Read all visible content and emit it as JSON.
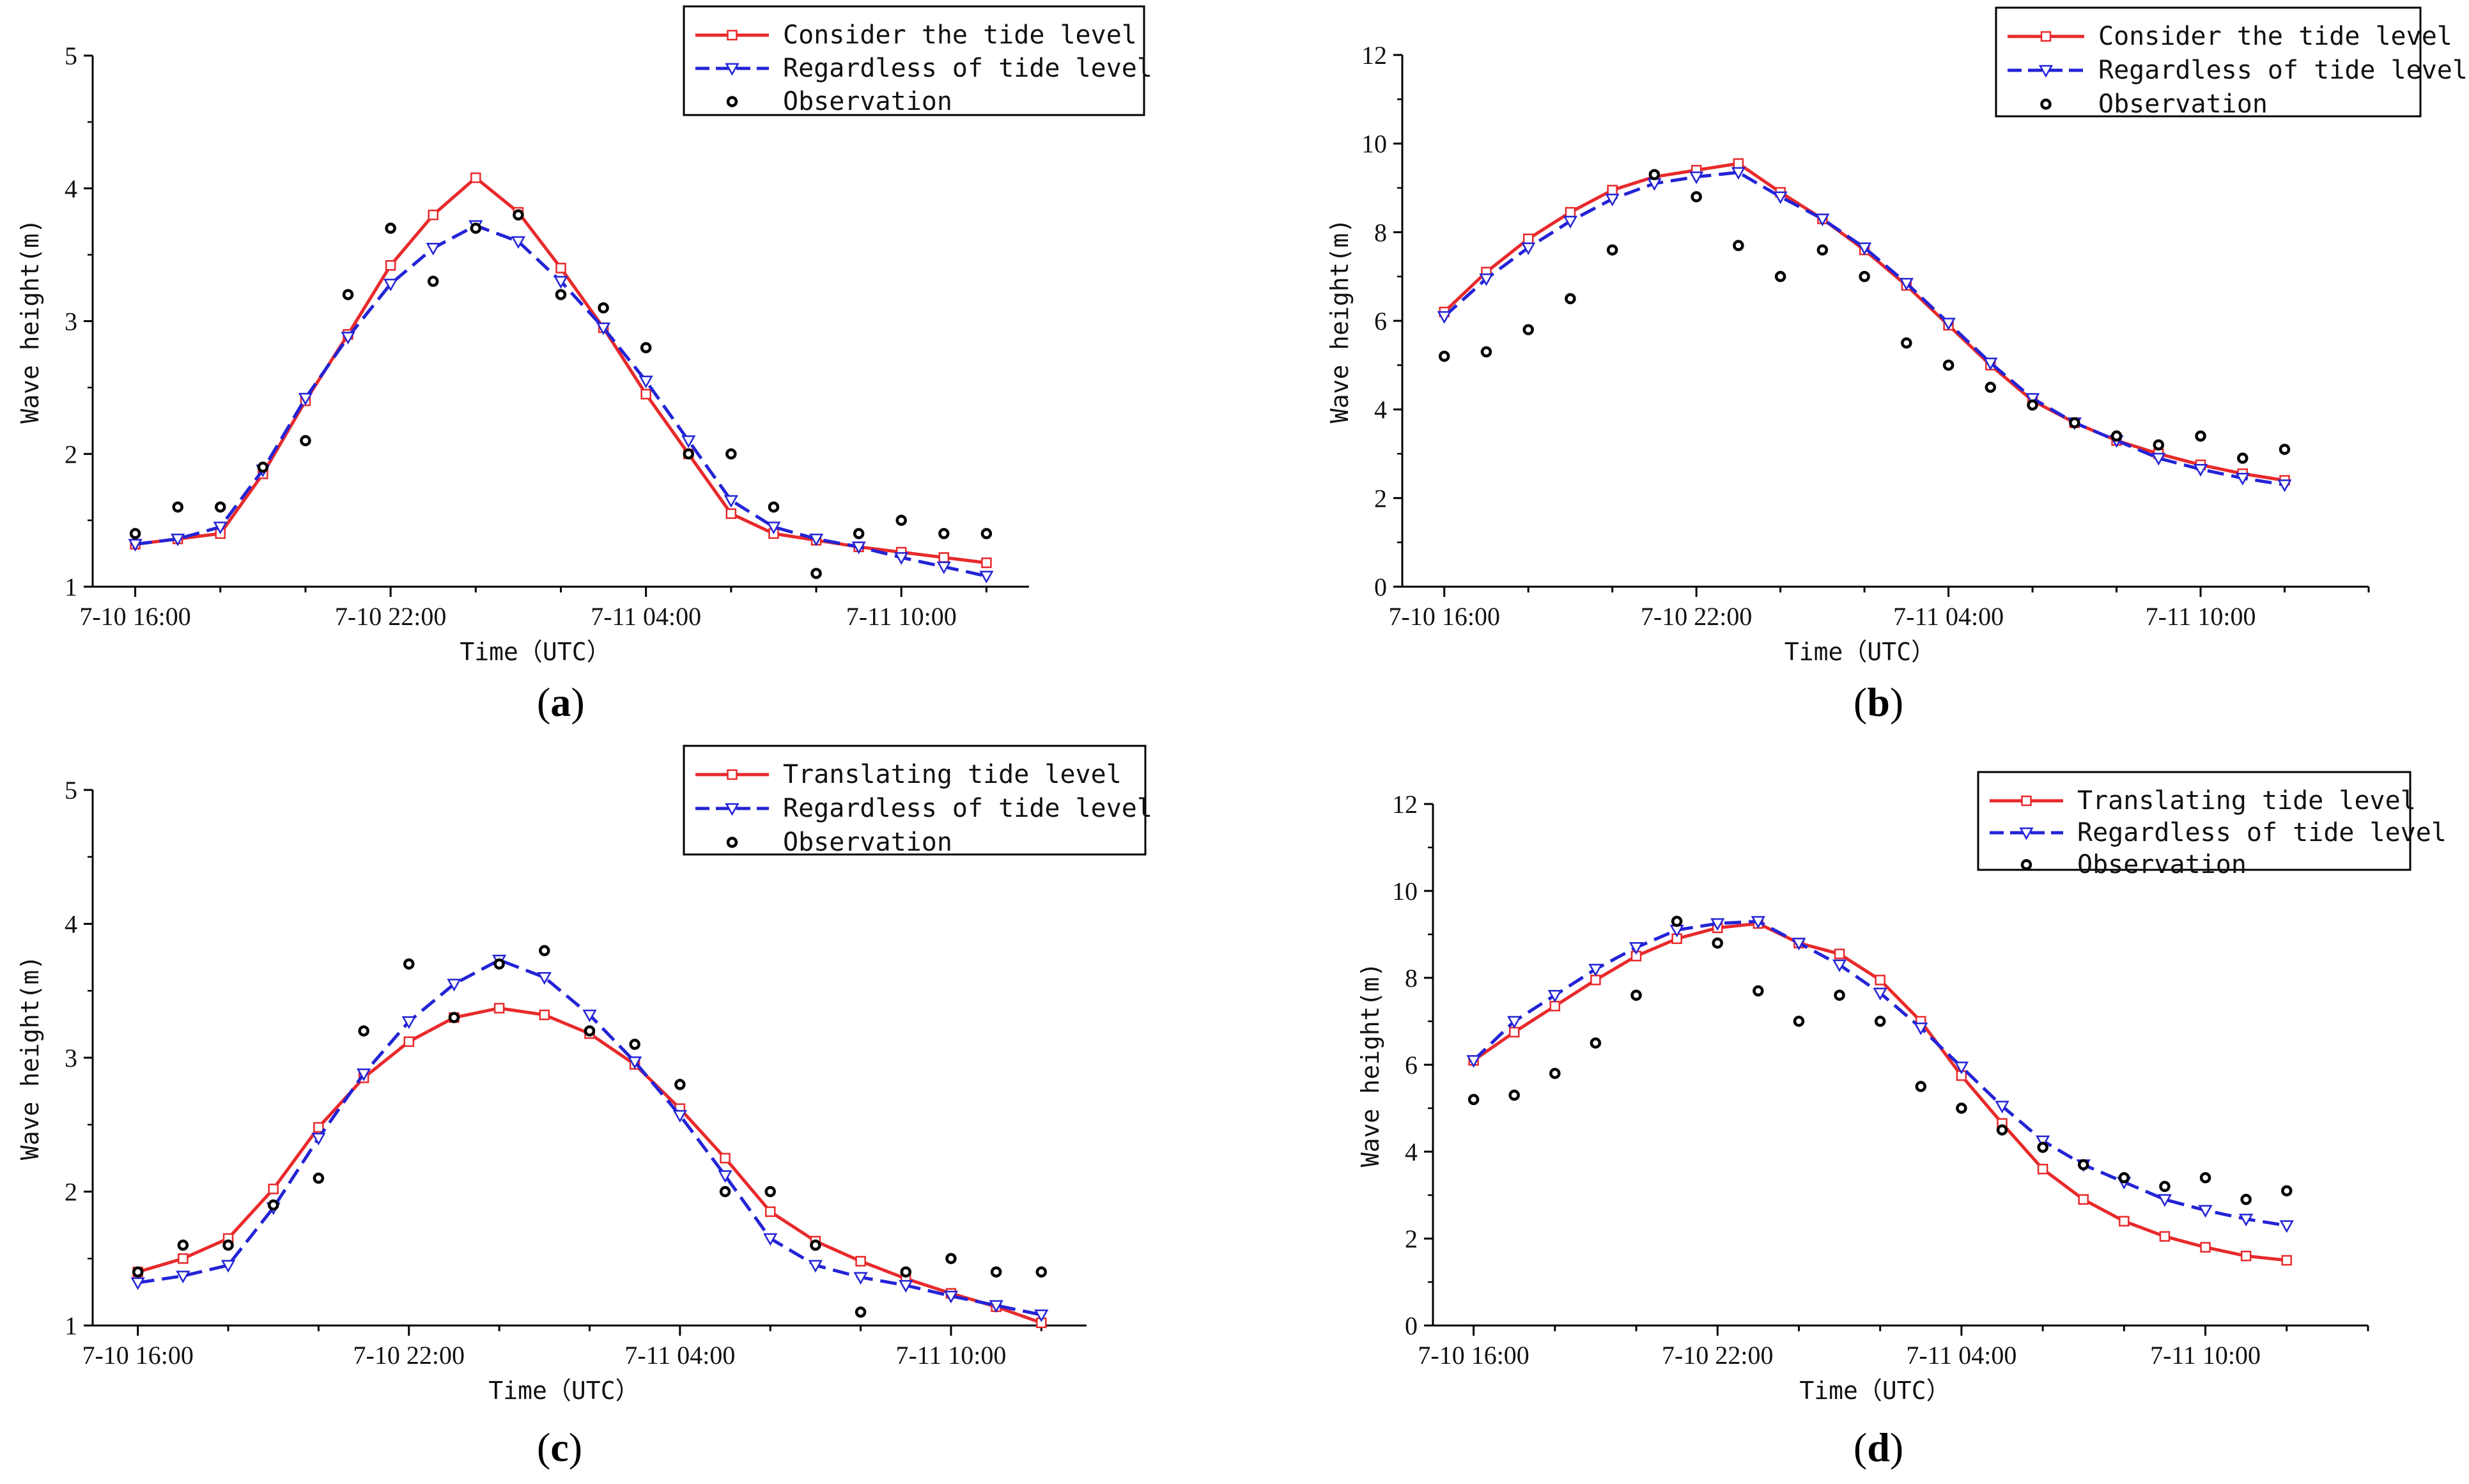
{
  "figure": {
    "panel_labels": [
      "(a)",
      "(b)",
      "(c)",
      "(d)"
    ]
  },
  "chart_data": [
    {
      "type": "line",
      "panel": "a",
      "xlabel": "Time（UTC）",
      "ylabel": "Wave height(m)",
      "x_tick_labels": [
        "7-10 16:00",
        "7-10 22:00",
        "7-11 04:00",
        "7-11 10:00"
      ],
      "x_tick_hours": [
        0,
        6,
        12,
        18
      ],
      "xlim": [
        -1,
        21
      ],
      "ylim": [
        1,
        5
      ],
      "y_ticks": [
        1,
        2,
        3,
        4,
        5
      ],
      "legend_position": "top-right",
      "x_hours": [
        0,
        1,
        2,
        3,
        4,
        5,
        6,
        7,
        8,
        9,
        10,
        11,
        12,
        13,
        14,
        15,
        16,
        17,
        18,
        19,
        20
      ],
      "series": [
        {
          "name": "Consider the tide level",
          "style": "solid",
          "marker": "square",
          "color": "#e8292b",
          "values": [
            1.32,
            1.36,
            1.4,
            1.85,
            2.4,
            2.9,
            3.42,
            3.8,
            4.08,
            3.82,
            3.4,
            2.95,
            2.45,
            2.0,
            1.55,
            1.4,
            1.35,
            1.3,
            1.26,
            1.22,
            1.18
          ]
        },
        {
          "name": "Regardless of tide level",
          "style": "dashed",
          "marker": "triangle-down",
          "color": "#2323d6",
          "values": [
            1.32,
            1.36,
            1.45,
            1.88,
            2.42,
            2.88,
            3.28,
            3.55,
            3.72,
            3.6,
            3.3,
            2.95,
            2.55,
            2.1,
            1.65,
            1.45,
            1.36,
            1.3,
            1.22,
            1.15,
            1.08
          ]
        },
        {
          "name": "Observation",
          "style": "points",
          "marker": "circle",
          "color": "#000000",
          "values": [
            1.4,
            1.6,
            1.6,
            1.9,
            2.1,
            3.2,
            3.7,
            3.3,
            3.7,
            3.8,
            3.2,
            3.1,
            2.8,
            2.0,
            2.0,
            1.6,
            1.1,
            1.4,
            1.5,
            1.4,
            1.4
          ]
        }
      ]
    },
    {
      "type": "line",
      "panel": "b",
      "xlabel": "Time（UTC）",
      "ylabel": "Wave height(m)",
      "x_tick_labels": [
        "7-10 16:00",
        "7-10 22:00",
        "7-11 04:00",
        "7-11 10:00"
      ],
      "x_tick_hours": [
        0,
        6,
        12,
        18
      ],
      "xlim": [
        -1,
        22
      ],
      "ylim": [
        0,
        12
      ],
      "y_ticks": [
        0,
        2,
        4,
        6,
        8,
        10,
        12
      ],
      "legend_position": "top-right",
      "x_hours": [
        0,
        1,
        2,
        3,
        4,
        5,
        6,
        7,
        8,
        9,
        10,
        11,
        12,
        13,
        14,
        15,
        16,
        17,
        18,
        19,
        20
      ],
      "series": [
        {
          "name": "Consider the tide level",
          "style": "solid",
          "marker": "square",
          "color": "#e8292b",
          "values": [
            6.2,
            7.1,
            7.85,
            8.45,
            8.95,
            9.25,
            9.4,
            9.55,
            8.9,
            8.3,
            7.6,
            6.8,
            5.9,
            5.0,
            4.2,
            3.7,
            3.3,
            3.0,
            2.75,
            2.55,
            2.4
          ]
        },
        {
          "name": "Regardless of tide level",
          "style": "dashed",
          "marker": "triangle-down",
          "color": "#2323d6",
          "values": [
            6.1,
            6.95,
            7.65,
            8.25,
            8.75,
            9.1,
            9.25,
            9.35,
            8.8,
            8.3,
            7.65,
            6.85,
            5.95,
            5.05,
            4.25,
            3.7,
            3.3,
            2.9,
            2.65,
            2.45,
            2.3
          ]
        },
        {
          "name": "Observation",
          "style": "points",
          "marker": "circle",
          "color": "#000000",
          "values": [
            5.2,
            5.3,
            5.8,
            6.5,
            7.6,
            9.3,
            8.8,
            7.7,
            7.0,
            7.6,
            7.0,
            5.5,
            5.0,
            4.5,
            4.1,
            3.7,
            3.4,
            3.2,
            3.4,
            2.9,
            3.1
          ]
        }
      ]
    },
    {
      "type": "line",
      "panel": "c",
      "xlabel": "Time（UTC）",
      "ylabel": "Wave height(m)",
      "x_tick_labels": [
        "7-10 16:00",
        "7-10 22:00",
        "7-11 04:00",
        "7-11 10:00"
      ],
      "x_tick_hours": [
        0,
        6,
        12,
        18
      ],
      "xlim": [
        -1,
        21
      ],
      "ylim": [
        1,
        5
      ],
      "y_ticks": [
        1,
        2,
        3,
        4,
        5
      ],
      "legend_position": "top-right",
      "x_hours": [
        0,
        1,
        2,
        3,
        4,
        5,
        6,
        7,
        8,
        9,
        10,
        11,
        12,
        13,
        14,
        15,
        16,
        17,
        18,
        19,
        20
      ],
      "series": [
        {
          "name": "Translating tide level",
          "style": "solid",
          "marker": "square",
          "color": "#e8292b",
          "values": [
            1.4,
            1.5,
            1.65,
            2.02,
            2.48,
            2.85,
            3.12,
            3.3,
            3.37,
            3.32,
            3.18,
            2.95,
            2.62,
            2.25,
            1.85,
            1.63,
            1.48,
            1.35,
            1.24,
            1.14,
            1.02
          ]
        },
        {
          "name": "Regardless of tide level",
          "style": "dashed",
          "marker": "triangle-down",
          "color": "#2323d6",
          "values": [
            1.32,
            1.37,
            1.45,
            1.88,
            2.4,
            2.88,
            3.27,
            3.55,
            3.73,
            3.6,
            3.32,
            2.97,
            2.57,
            2.12,
            1.65,
            1.45,
            1.36,
            1.3,
            1.22,
            1.15,
            1.08
          ]
        },
        {
          "name": "Observation",
          "style": "points",
          "marker": "circle",
          "color": "#000000",
          "values": [
            1.4,
            1.6,
            1.6,
            1.9,
            2.1,
            3.2,
            3.7,
            3.3,
            3.7,
            3.8,
            3.2,
            3.1,
            2.8,
            2.0,
            2.0,
            1.6,
            1.1,
            1.4,
            1.5,
            1.4,
            1.4
          ]
        }
      ]
    },
    {
      "type": "line",
      "panel": "d",
      "xlabel": "Time（UTC）",
      "ylabel": "Wave height(m)",
      "x_tick_labels": [
        "7-10 16:00",
        "7-10 22:00",
        "7-11 04:00",
        "7-11 10:00"
      ],
      "x_tick_hours": [
        0,
        6,
        12,
        18
      ],
      "xlim": [
        -1,
        22
      ],
      "ylim": [
        0,
        12
      ],
      "y_ticks": [
        0,
        2,
        4,
        6,
        8,
        10,
        12
      ],
      "legend_position": "top-right",
      "x_hours": [
        0,
        1,
        2,
        3,
        4,
        5,
        6,
        7,
        8,
        9,
        10,
        11,
        12,
        13,
        14,
        15,
        16,
        17,
        18,
        19,
        20
      ],
      "series": [
        {
          "name": "Translating tide level",
          "style": "solid",
          "marker": "square",
          "color": "#e8292b",
          "values": [
            6.1,
            6.75,
            7.35,
            7.95,
            8.5,
            8.9,
            9.15,
            9.25,
            8.8,
            8.55,
            7.95,
            7.0,
            5.75,
            4.65,
            3.6,
            2.9,
            2.4,
            2.05,
            1.8,
            1.6,
            1.5
          ]
        },
        {
          "name": "Regardless of tide level",
          "style": "dashed",
          "marker": "triangle-down",
          "color": "#2323d6",
          "values": [
            6.1,
            7.0,
            7.6,
            8.2,
            8.7,
            9.1,
            9.25,
            9.3,
            8.8,
            8.3,
            7.65,
            6.85,
            5.95,
            5.05,
            4.25,
            3.7,
            3.3,
            2.9,
            2.65,
            2.45,
            2.3
          ]
        },
        {
          "name": "Observation",
          "style": "points",
          "marker": "circle",
          "color": "#000000",
          "values": [
            5.2,
            5.3,
            5.8,
            6.5,
            7.6,
            9.3,
            8.8,
            7.7,
            7.0,
            7.6,
            7.0,
            5.5,
            5.0,
            4.5,
            4.1,
            3.7,
            3.4,
            3.2,
            3.4,
            2.9,
            3.1
          ]
        }
      ]
    }
  ]
}
